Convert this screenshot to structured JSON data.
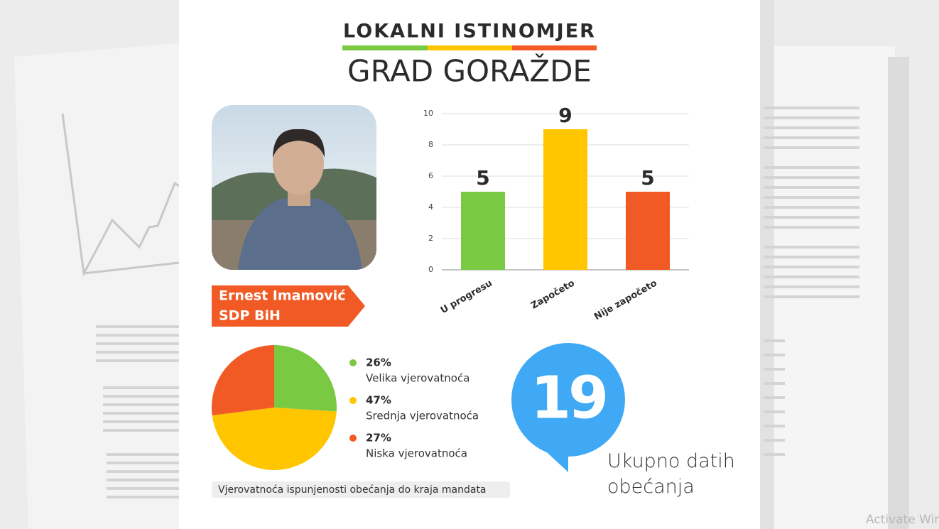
{
  "header": {
    "title": "LOKALNI ISTINOMJER",
    "subtitle": "GRAD GORAŽDE"
  },
  "candidate": {
    "name": "Ernest Imamović",
    "party": "SDP BiH"
  },
  "chart_data": [
    {
      "type": "bar",
      "categories": [
        "U progresu",
        "Započeto",
        "Nije započeto"
      ],
      "values": [
        5,
        9,
        5
      ],
      "colors": [
        "#7ac943",
        "#ffc600",
        "#f15a24"
      ],
      "ylim": [
        0,
        10
      ],
      "yticks": [
        0,
        2,
        4,
        6,
        8,
        10
      ],
      "grid": true
    },
    {
      "type": "pie",
      "title": "Vjerovatnoća ispunjenosti obećanja do kraja mandata",
      "categories": [
        "Velika vjerovatnoća",
        "Srednja vjerovatnoća",
        "Niska vjerovatnoća"
      ],
      "values": [
        26,
        47,
        27
      ],
      "value_labels": [
        "26%",
        "47%",
        "27%"
      ],
      "colors": [
        "#7ac943",
        "#ffc600",
        "#f15a24"
      ]
    }
  ],
  "total": {
    "value": 19,
    "label": "Ukupno datih obećanja"
  },
  "watermark": "Activate Windows"
}
